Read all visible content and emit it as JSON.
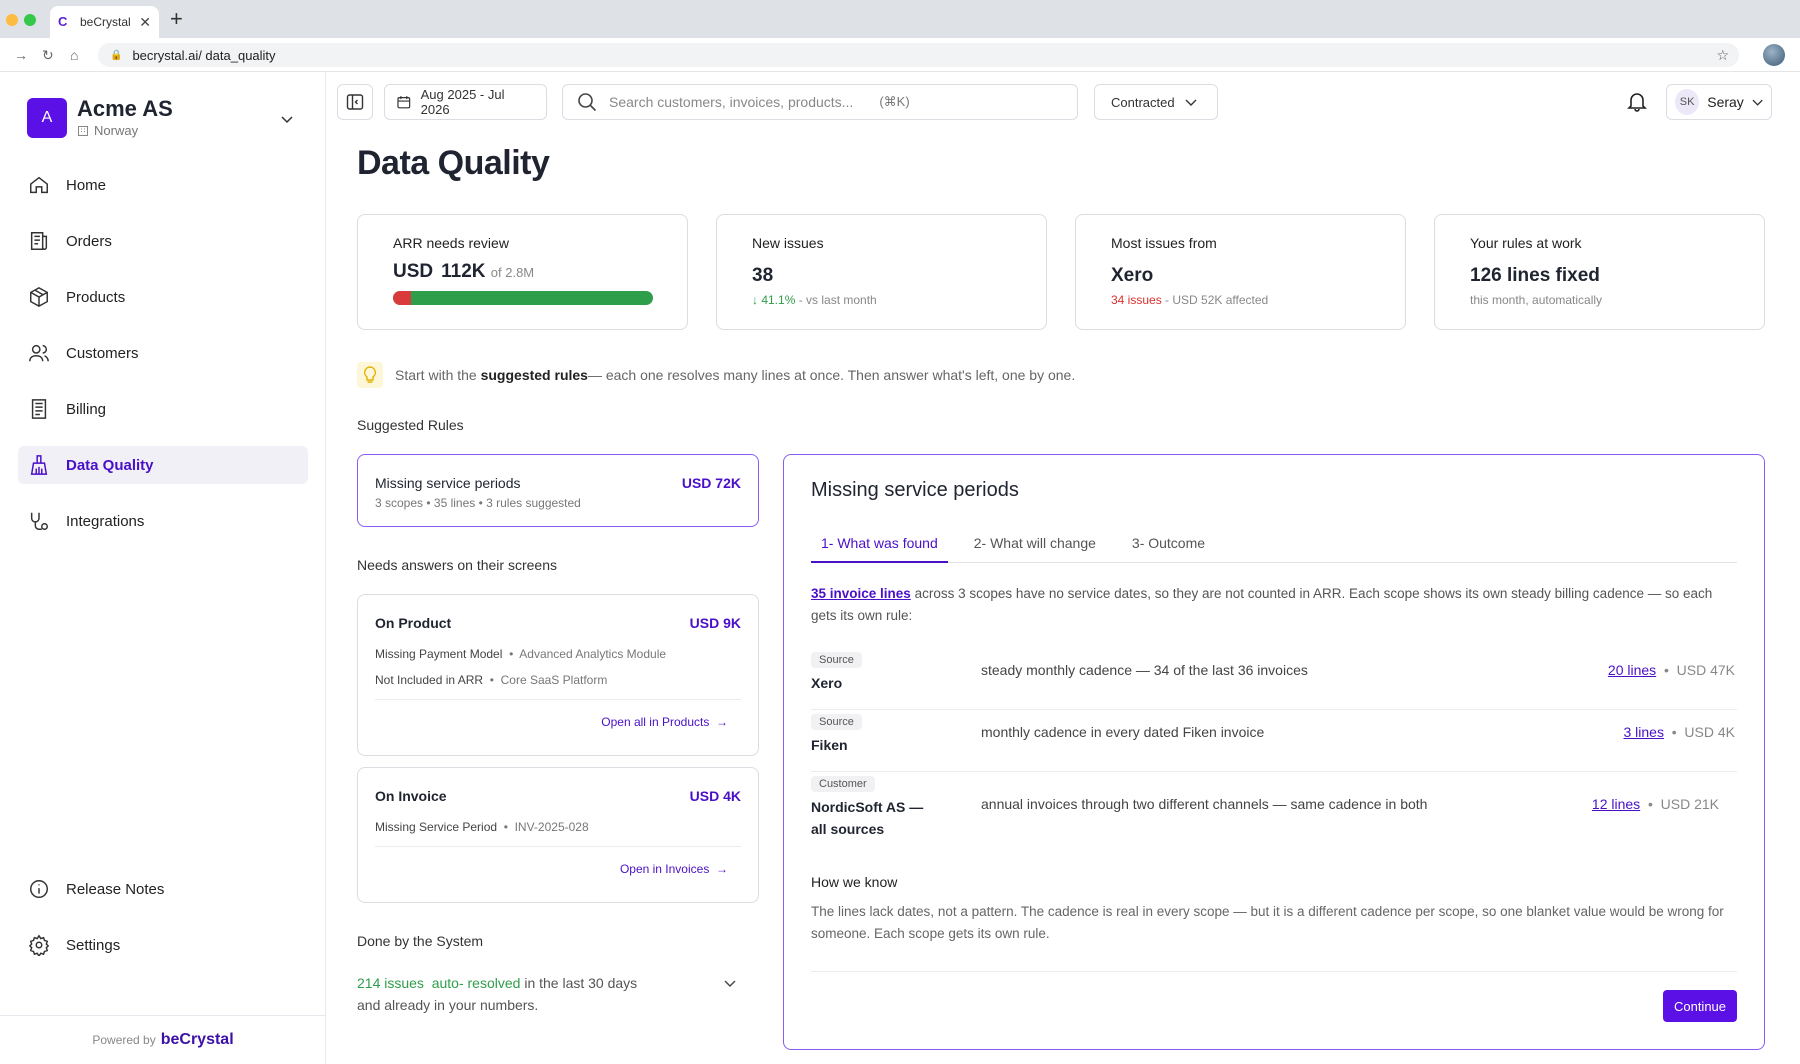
{
  "browser": {
    "tab_title": "beCrystal",
    "url": "becrystal.ai/ data_quality"
  },
  "org": {
    "initial": "A",
    "name": "Acme AS",
    "country": "Norway"
  },
  "nav": {
    "items": [
      {
        "label": "Home",
        "icon": "home-icon"
      },
      {
        "label": "Orders",
        "icon": "orders-icon"
      },
      {
        "label": "Products",
        "icon": "box-icon"
      },
      {
        "label": "Customers",
        "icon": "users-icon"
      },
      {
        "label": "Billing",
        "icon": "billing-icon"
      },
      {
        "label": "Data Quality",
        "icon": "broom-icon",
        "active": true
      },
      {
        "label": "Integrations",
        "icon": "integrations-icon"
      }
    ],
    "bottom": [
      {
        "label": "Release Notes",
        "icon": "info-icon"
      },
      {
        "label": "Settings",
        "icon": "gear-icon"
      }
    ],
    "powered_by": "Powered by",
    "powered_brand": "beCrystal"
  },
  "topbar": {
    "date_range": "Aug 2025 - Jul 2026",
    "search_placeholder": "Search customers, invoices, products...",
    "search_shortcut": "(⌘K)",
    "filter": "Contracted",
    "user_initials": "SK",
    "user_name": "Seray"
  },
  "page": {
    "title": "Data Quality"
  },
  "kpis": {
    "arr": {
      "label": "ARR needs review",
      "currency": "USD",
      "value": "112K",
      "of": "of 2.8M",
      "review_fraction": 0.04
    },
    "new_issues": {
      "label": "New issues",
      "value": "38",
      "change": "↓ 41.1%",
      "change_suffix": " - vs last month"
    },
    "most_from": {
      "label": "Most issues from",
      "value": "Xero",
      "issues": "34 issues",
      "affected": " - USD 52K affected"
    },
    "rules": {
      "label": "Your rules at work",
      "value": "126 lines fixed",
      "sub": "this month, automatically"
    }
  },
  "tip": {
    "before": "Start with the ",
    "bold": "suggested rules",
    "after": " — each one resolves many lines at once. Then answer what's left, one by one."
  },
  "suggested": {
    "heading": "Suggested Rules",
    "card": {
      "title": "Missing service periods",
      "amount": "USD 72K",
      "meta": "3 scopes  •  35 lines  •  3 rules suggested"
    }
  },
  "needs_answers": {
    "heading": "Needs answers on their screens",
    "product": {
      "title": "On Product",
      "amount": "USD 9K",
      "row1_issue": "Missing Payment Model",
      "row1_item": "Advanced Analytics Module",
      "row2_issue": "Not Included in ARR",
      "row2_item": "Core SaaS Platform",
      "link": "Open all in Products"
    },
    "invoice": {
      "title": "On Invoice",
      "amount": "USD 4K",
      "row1_issue": "Missing Service Period",
      "row1_item": "INV-2025-028",
      "link": "Open in Invoices"
    }
  },
  "done": {
    "heading": "Done by the System",
    "count": "214 issues",
    "auto": "auto- resolved",
    "rest": " in the last 30 days",
    "line2": "and already in your numbers."
  },
  "detail": {
    "title": "Missing service periods",
    "tabs": [
      "1- What was found",
      "2- What will change",
      "3- Outcome"
    ],
    "intro_link": "35 invoice lines",
    "intro_text": " across 3 scopes have no service dates, so they are not counted in ARR. Each scope shows its own steady billing cadence — so each gets its own rule:",
    "scopes": [
      {
        "tag": "Source",
        "name": "Xero",
        "desc": "steady monthly cadence — 34 of the last 36 invoices",
        "lines": "20 lines",
        "amount": "USD 47K"
      },
      {
        "tag": "Source",
        "name": "Fiken",
        "desc": "monthly cadence in every dated Fiken invoice",
        "lines": "3 lines",
        "amount": "USD 4K"
      },
      {
        "tag": "Customer",
        "name": "NordicSoft AS — all sources",
        "desc": "annual invoices through two different channels — same cadence in both",
        "lines": "12 lines",
        "amount": "USD 21K"
      }
    ],
    "how_heading": "How we know",
    "how_body": "The lines lack dates, not a pattern. The cadence is real in every scope — but it is a different cadence per scope, so one blanket value would be wrong for someone. Each scope gets its own rule.",
    "continue": "Continue"
  },
  "colors": {
    "accent": "#5b10e6",
    "good": "#2e9e4a",
    "bad": "#d93a3a"
  }
}
